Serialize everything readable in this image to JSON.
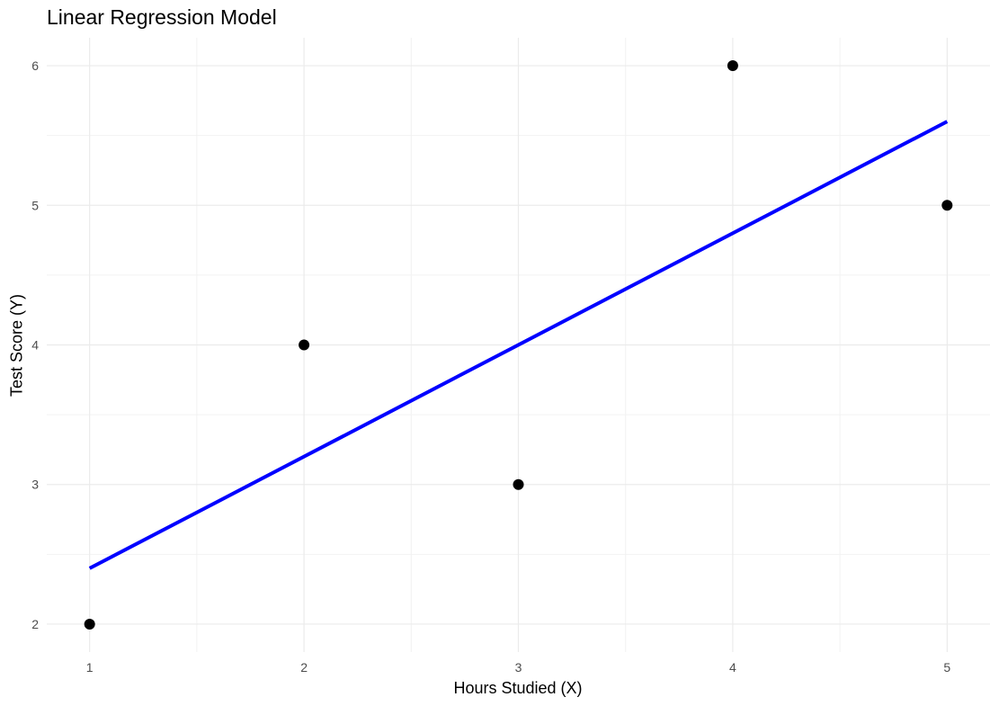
{
  "chart_data": {
    "type": "scatter",
    "title": "Linear Regression Model",
    "xlabel": "Hours Studied (X)",
    "ylabel": "Test Score (Y)",
    "xlim": [
      0.8,
      5.2
    ],
    "ylim": [
      1.8,
      6.2
    ],
    "x_ticks": [
      1,
      2,
      3,
      4,
      5
    ],
    "y_ticks": [
      2,
      3,
      4,
      5,
      6
    ],
    "grid": true,
    "points": [
      {
        "x": 1,
        "y": 2
      },
      {
        "x": 2,
        "y": 4
      },
      {
        "x": 3,
        "y": 3
      },
      {
        "x": 4,
        "y": 6
      },
      {
        "x": 5,
        "y": 5
      }
    ],
    "regression_line": {
      "color": "#0000ff",
      "x": [
        1,
        5
      ],
      "y": [
        2.4,
        5.6
      ]
    },
    "point_color": "#000000"
  }
}
